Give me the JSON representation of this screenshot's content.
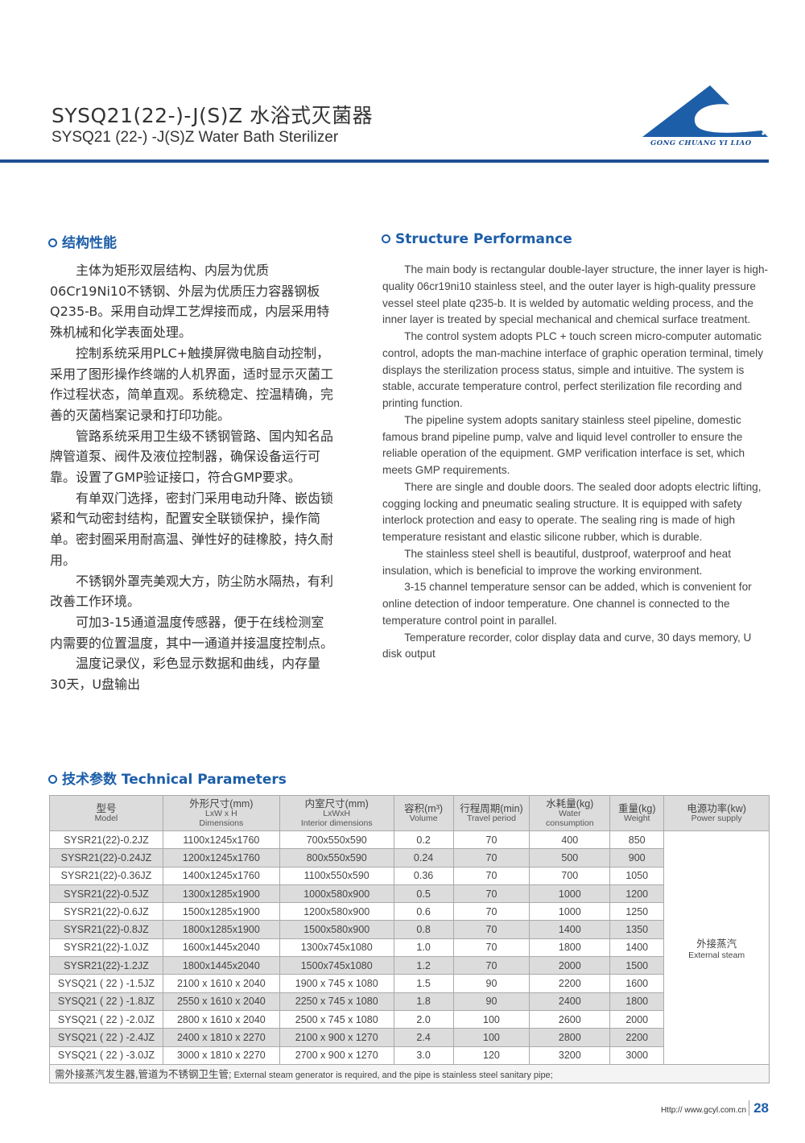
{
  "header": {
    "title_cn": "SYSQ21(22-)-J(S)Z 水浴式灭菌器",
    "title_en": "SYSQ21 (22-) -J(S)Z Water Bath Sterilizer",
    "logo_text": "GONG CHUANG YI LIAO",
    "accent_color": "#1d5ea8"
  },
  "structure_cn": {
    "heading": "结构性能",
    "paragraphs": [
      "主体为矩形双层结构、内层为优质06Cr19Ni10不锈钢、外层为优质压力容器钢板Q235-B。采用自动焊工艺焊接而成，内层采用特殊机械和化学表面处理。",
      "控制系统采用PLC+触摸屏微电脑自动控制，采用了图形操作终端的人机界面，适时显示灭菌工作过程状态，简单直观。系统稳定、控温精确，完善的灭菌档案记录和打印功能。",
      "管路系统采用卫生级不锈钢管路、国内知名品牌管道泵、阀件及液位控制器，确保设备运行可靠。设置了GMP验证接口，符合GMP要求。",
      "有单双门选择，密封门采用电动升降、嵌齿锁紧和气动密封结构，配置安全联锁保护，操作简单。密封圈采用耐高温、弹性好的硅橡胶，持久耐用。",
      "不锈钢外罩壳美观大方，防尘防水隔热，有利改善工作环境。",
      "可加3-15通道温度传感器，便于在线检测室内需要的位置温度，其中一通道并接温度控制点。",
      "温度记录仪，彩色显示数据和曲线，内存量30天，U盘输出"
    ]
  },
  "structure_en": {
    "heading": "Structure Performance",
    "paragraphs": [
      "The main body is rectangular double-layer structure, the inner layer is high-quality 06cr19ni10 stainless steel, and the outer layer is high-quality pressure vessel steel plate q235-b. It is welded by automatic welding process, and the inner layer is treated by special mechanical and chemical surface treatment.",
      "The control system adopts PLC + touch screen micro-computer automatic control, adopts the man-machine interface of graphic operation terminal, timely displays the sterilization process status, simple and intuitive. The system is stable, accurate temperature control, perfect sterilization file recording and printing function.",
      "The pipeline system adopts sanitary stainless steel pipeline, domestic famous brand pipeline pump, valve and liquid level controller to ensure the reliable operation of the equipment. GMP verification interface is set, which meets GMP requirements.",
      "There are single and double doors. The sealed door adopts electric lifting, cogging locking and pneumatic sealing structure. It is equipped with safety interlock protection and easy to operate. The sealing ring is made of high temperature resistant and elastic silicone rubber, which is durable.",
      "The stainless steel shell is beautiful, dustproof, waterproof and heat insulation, which is beneficial to improve the working environment.",
      "3-15 channel temperature sensor can be added, which is convenient for online detection of indoor temperature. One channel is connected to the temperature control point in parallel.",
      "Temperature recorder, color display data and curve, 30 days memory, U disk output"
    ]
  },
  "params": {
    "heading": "技术参数 Technical Parameters",
    "columns": [
      [
        "型号",
        "Model"
      ],
      [
        "外形尺寸(mm)",
        "LxW x H",
        "Dimensions"
      ],
      [
        "内室尺寸(mm)",
        "LxWxH",
        "Interior dimensions"
      ],
      [
        "容积(m³)",
        "Volume"
      ],
      [
        "行程周期(min)",
        "Travel period"
      ],
      [
        "水耗量(kg)",
        "Water",
        "consumption"
      ],
      [
        "重量(kg)",
        "Weight"
      ],
      [
        "电源功率(kw)",
        "Power supply"
      ]
    ],
    "rows": [
      [
        "SYSR21(22)-0.2JZ",
        "1100x1245x1760",
        "700x550x590",
        "0.2",
        "70",
        "400",
        "850"
      ],
      [
        "SYSR21(22)-0.24JZ",
        "1200x1245x1760",
        "800x550x590",
        "0.24",
        "70",
        "500",
        "900"
      ],
      [
        "SYSR21(22)-0.36JZ",
        "1400x1245x1760",
        "1100x550x590",
        "0.36",
        "70",
        "700",
        "1050"
      ],
      [
        "SYSR21(22)-0.5JZ",
        "1300x1285x1900",
        "1000x580x900",
        "0.5",
        "70",
        "1000",
        "1200"
      ],
      [
        "SYSR21(22)-0.6JZ",
        "1500x1285x1900",
        "1200x580x900",
        "0.6",
        "70",
        "1000",
        "1250"
      ],
      [
        "SYSR21(22)-0.8JZ",
        "1800x1285x1900",
        "1500x580x900",
        "0.8",
        "70",
        "1400",
        "1350"
      ],
      [
        "SYSR21(22)-1.0JZ",
        "1600x1445x2040",
        "1300x745x1080",
        "1.0",
        "70",
        "1800",
        "1400"
      ],
      [
        "SYSR21(22)-1.2JZ",
        "1800x1445x2040",
        "1500x745x1080",
        "1.2",
        "70",
        "2000",
        "1500"
      ],
      [
        "SYSQ21 ( 22 ) -1.5JZ",
        "2100 x 1610 x 2040",
        "1900 x 745 x 1080",
        "1.5",
        "90",
        "2200",
        "1600"
      ],
      [
        "SYSQ21 ( 22 ) -1.8JZ",
        "2550 x 1610 x 2040",
        "2250 x 745 x 1080",
        "1.8",
        "90",
        "2400",
        "1800"
      ],
      [
        "SYSQ21 ( 22 ) -2.0JZ",
        "2800 x 1610 x 2040",
        "2500 x 745 x 1080",
        "2.0",
        "100",
        "2600",
        "2000"
      ],
      [
        "SYSQ21 ( 22 ) -2.4JZ",
        "2400 x 1810 x 2270",
        "2100 x 900 x 1270",
        "2.4",
        "100",
        "2800",
        "2200"
      ],
      [
        "SYSQ21 ( 22 ) -3.0JZ",
        "3000 x 1810 x 2270",
        "2700 x 900 x 1270",
        "3.0",
        "120",
        "3200",
        "3000"
      ]
    ],
    "power_cn": "外接蒸汽",
    "power_en": "External steam",
    "note_cn": "需外接蒸汽发生器,管道为不锈钢卫生管;",
    "note_en": "External steam generator is required, and the pipe is stainless steel sanitary pipe;"
  },
  "footer": {
    "url": "Http:// www.gcyl.com.cn",
    "page": "28"
  }
}
